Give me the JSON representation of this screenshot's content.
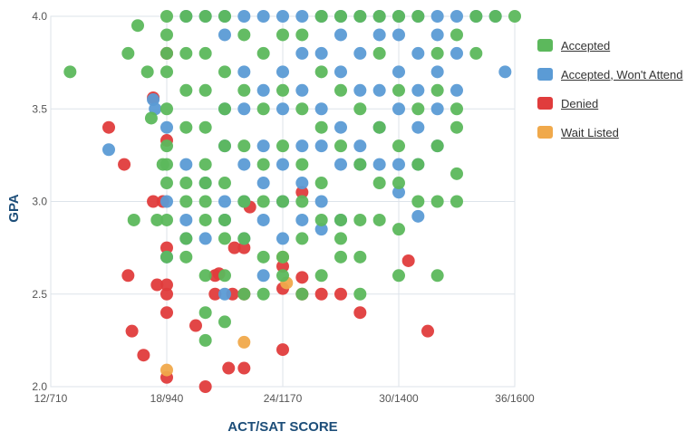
{
  "chart_data": {
    "type": "scatter",
    "xlabel": "ACT/SAT SCORE",
    "ylabel": "GPA",
    "xlim": [
      12,
      36
    ],
    "ylim": [
      2.0,
      4.0
    ],
    "x_ticks": [
      {
        "value": 12,
        "label": "12/710"
      },
      {
        "value": 18,
        "label": "18/940"
      },
      {
        "value": 24,
        "label": "24/1170"
      },
      {
        "value": 30,
        "label": "30/1400"
      },
      {
        "value": 36,
        "label": "36/1600"
      }
    ],
    "y_ticks": [
      {
        "value": 2.0,
        "label": "2.0"
      },
      {
        "value": 2.5,
        "label": "2.5"
      },
      {
        "value": 3.0,
        "label": "3.0"
      },
      {
        "value": 3.5,
        "label": "3.5"
      },
      {
        "value": 4.0,
        "label": "4.0"
      }
    ],
    "grid": true,
    "legend_position": "right",
    "series": [
      {
        "name": "Accepted",
        "color": "#5cb85c",
        "points": [
          [
            13.0,
            3.7
          ],
          [
            16.0,
            3.8
          ],
          [
            16.3,
            2.9
          ],
          [
            16.5,
            3.95
          ],
          [
            17.0,
            3.7
          ],
          [
            17.2,
            3.45
          ],
          [
            17.5,
            2.9
          ],
          [
            17.8,
            3.2
          ],
          [
            18.0,
            3.5
          ],
          [
            18.0,
            3.3
          ],
          [
            18.0,
            3.2
          ],
          [
            18.0,
            3.1
          ],
          [
            18.0,
            2.9
          ],
          [
            18.0,
            2.7
          ],
          [
            18.0,
            3.7
          ],
          [
            18.0,
            3.8
          ],
          [
            18.0,
            3.9
          ],
          [
            18.0,
            4.0
          ],
          [
            19.0,
            3.6
          ],
          [
            19.0,
            3.4
          ],
          [
            19.0,
            3.1
          ],
          [
            19.0,
            3.0
          ],
          [
            19.0,
            2.8
          ],
          [
            19.0,
            2.7
          ],
          [
            19.0,
            3.8
          ],
          [
            19.0,
            4.0
          ],
          [
            20.0,
            3.6
          ],
          [
            20.0,
            3.4
          ],
          [
            20.0,
            3.2
          ],
          [
            20.0,
            3.1
          ],
          [
            20.0,
            3.0
          ],
          [
            20.0,
            2.9
          ],
          [
            20.0,
            2.6
          ],
          [
            20.0,
            2.4
          ],
          [
            20.0,
            2.25
          ],
          [
            20.0,
            3.8
          ],
          [
            20.0,
            4.0
          ],
          [
            21.0,
            3.7
          ],
          [
            21.0,
            3.5
          ],
          [
            21.0,
            3.3
          ],
          [
            21.0,
            3.1
          ],
          [
            21.0,
            2.9
          ],
          [
            21.0,
            2.8
          ],
          [
            21.0,
            2.6
          ],
          [
            21.0,
            2.35
          ],
          [
            21.0,
            4.0
          ],
          [
            22.0,
            3.6
          ],
          [
            22.0,
            3.3
          ],
          [
            22.0,
            3.0
          ],
          [
            22.0,
            2.8
          ],
          [
            22.0,
            2.5
          ],
          [
            22.0,
            3.9
          ],
          [
            23.0,
            3.5
          ],
          [
            23.0,
            3.2
          ],
          [
            23.0,
            3.0
          ],
          [
            23.0,
            2.7
          ],
          [
            23.0,
            2.5
          ],
          [
            23.0,
            3.8
          ],
          [
            24.0,
            3.6
          ],
          [
            24.0,
            3.3
          ],
          [
            24.0,
            3.0
          ],
          [
            24.0,
            2.7
          ],
          [
            24.0,
            2.6
          ],
          [
            24.0,
            3.9
          ],
          [
            25.0,
            3.5
          ],
          [
            25.0,
            3.2
          ],
          [
            25.0,
            3.0
          ],
          [
            25.0,
            2.8
          ],
          [
            25.0,
            2.5
          ],
          [
            25.0,
            3.9
          ],
          [
            26.0,
            3.7
          ],
          [
            26.0,
            3.4
          ],
          [
            26.0,
            3.1
          ],
          [
            26.0,
            2.9
          ],
          [
            26.0,
            2.6
          ],
          [
            26.0,
            4.0
          ],
          [
            27.0,
            3.6
          ],
          [
            27.0,
            3.3
          ],
          [
            27.0,
            2.9
          ],
          [
            27.0,
            2.8
          ],
          [
            27.0,
            2.7
          ],
          [
            27.0,
            4.0
          ],
          [
            28.0,
            3.5
          ],
          [
            28.0,
            3.2
          ],
          [
            28.0,
            2.9
          ],
          [
            28.0,
            2.7
          ],
          [
            28.0,
            2.5
          ],
          [
            28.0,
            4.0
          ],
          [
            29.0,
            3.4
          ],
          [
            29.0,
            3.1
          ],
          [
            29.0,
            2.9
          ],
          [
            29.0,
            3.8
          ],
          [
            29.0,
            4.0
          ],
          [
            30.0,
            3.6
          ],
          [
            30.0,
            3.3
          ],
          [
            30.0,
            3.1
          ],
          [
            30.0,
            2.85
          ],
          [
            30.0,
            2.6
          ],
          [
            30.0,
            4.0
          ],
          [
            31.0,
            3.5
          ],
          [
            31.0,
            3.2
          ],
          [
            31.0,
            3.0
          ],
          [
            31.0,
            4.0
          ],
          [
            32.0,
            3.6
          ],
          [
            32.0,
            3.3
          ],
          [
            32.0,
            3.0
          ],
          [
            32.0,
            2.6
          ],
          [
            32.0,
            3.8
          ],
          [
            33.0,
            3.5
          ],
          [
            33.0,
            3.15
          ],
          [
            33.0,
            3.0
          ],
          [
            33.0,
            3.4
          ],
          [
            33.0,
            3.9
          ],
          [
            34.0,
            3.8
          ],
          [
            34.0,
            4.0
          ],
          [
            35.0,
            4.0
          ],
          [
            36.0,
            4.0
          ]
        ]
      },
      {
        "name": "Accepted, Won't Attend",
        "color": "#5b9bd5",
        "points": [
          [
            15.0,
            3.28
          ],
          [
            17.3,
            3.55
          ],
          [
            17.4,
            3.5
          ],
          [
            18.0,
            3.0
          ],
          [
            18.0,
            2.7
          ],
          [
            18.0,
            3.4
          ],
          [
            19.0,
            4.0
          ],
          [
            19.0,
            3.2
          ],
          [
            19.0,
            2.9
          ],
          [
            19.0,
            2.8
          ],
          [
            20.0,
            4.0
          ],
          [
            20.0,
            3.1
          ],
          [
            20.0,
            2.8
          ],
          [
            21.0,
            4.0
          ],
          [
            21.0,
            3.9
          ],
          [
            21.0,
            3.5
          ],
          [
            21.0,
            3.3
          ],
          [
            21.0,
            3.0
          ],
          [
            21.0,
            2.9
          ],
          [
            21.0,
            2.5
          ],
          [
            22.0,
            4.0
          ],
          [
            22.0,
            3.7
          ],
          [
            22.0,
            3.5
          ],
          [
            22.0,
            3.2
          ],
          [
            22.0,
            3.0
          ],
          [
            22.0,
            2.8
          ],
          [
            23.0,
            4.0
          ],
          [
            23.0,
            3.6
          ],
          [
            23.0,
            3.3
          ],
          [
            23.0,
            3.1
          ],
          [
            23.0,
            2.9
          ],
          [
            23.0,
            2.6
          ],
          [
            24.0,
            4.0
          ],
          [
            24.0,
            3.7
          ],
          [
            24.0,
            3.5
          ],
          [
            24.0,
            3.2
          ],
          [
            24.0,
            3.0
          ],
          [
            24.0,
            2.8
          ],
          [
            25.0,
            4.0
          ],
          [
            25.0,
            3.8
          ],
          [
            25.0,
            3.6
          ],
          [
            25.0,
            3.3
          ],
          [
            25.0,
            3.1
          ],
          [
            25.0,
            2.9
          ],
          [
            26.0,
            4.0
          ],
          [
            26.0,
            3.8
          ],
          [
            26.0,
            3.5
          ],
          [
            26.0,
            3.3
          ],
          [
            26.0,
            3.0
          ],
          [
            26.0,
            2.85
          ],
          [
            27.0,
            4.0
          ],
          [
            27.0,
            3.9
          ],
          [
            27.0,
            3.7
          ],
          [
            27.0,
            3.4
          ],
          [
            27.0,
            3.2
          ],
          [
            27.0,
            2.9
          ],
          [
            28.0,
            4.0
          ],
          [
            28.0,
            3.8
          ],
          [
            28.0,
            3.6
          ],
          [
            28.0,
            3.3
          ],
          [
            28.0,
            3.2
          ],
          [
            29.0,
            4.0
          ],
          [
            29.0,
            3.9
          ],
          [
            29.0,
            3.6
          ],
          [
            29.0,
            3.4
          ],
          [
            29.0,
            3.2
          ],
          [
            30.0,
            4.0
          ],
          [
            30.0,
            3.9
          ],
          [
            30.0,
            3.7
          ],
          [
            30.0,
            3.5
          ],
          [
            30.0,
            3.2
          ],
          [
            30.0,
            3.05
          ],
          [
            31.0,
            4.0
          ],
          [
            31.0,
            3.8
          ],
          [
            31.0,
            3.6
          ],
          [
            31.0,
            3.4
          ],
          [
            31.0,
            3.2
          ],
          [
            31.0,
            2.92
          ],
          [
            32.0,
            4.0
          ],
          [
            32.0,
            3.9
          ],
          [
            32.0,
            3.7
          ],
          [
            32.0,
            3.5
          ],
          [
            32.0,
            3.3
          ],
          [
            33.0,
            4.0
          ],
          [
            33.0,
            3.8
          ],
          [
            33.0,
            3.6
          ],
          [
            34.0,
            4.0
          ],
          [
            35.0,
            4.0
          ],
          [
            35.5,
            3.7
          ]
        ]
      },
      {
        "name": "Denied",
        "color": "#e03c3c",
        "points": [
          [
            15.0,
            3.4
          ],
          [
            15.8,
            3.2
          ],
          [
            16.0,
            2.6
          ],
          [
            16.2,
            2.3
          ],
          [
            16.8,
            2.17
          ],
          [
            17.3,
            3.56
          ],
          [
            17.3,
            3.0
          ],
          [
            17.5,
            2.55
          ],
          [
            17.8,
            3.0
          ],
          [
            18.0,
            2.75
          ],
          [
            18.0,
            2.55
          ],
          [
            18.0,
            2.5
          ],
          [
            18.0,
            2.4
          ],
          [
            18.0,
            2.05
          ],
          [
            18.0,
            3.33
          ],
          [
            18.0,
            3.8
          ],
          [
            19.5,
            2.33
          ],
          [
            20.0,
            2.0
          ],
          [
            20.5,
            2.5
          ],
          [
            20.5,
            2.6
          ],
          [
            20.7,
            2.61
          ],
          [
            21.2,
            2.1
          ],
          [
            21.4,
            2.5
          ],
          [
            21.5,
            2.75
          ],
          [
            22.0,
            2.5
          ],
          [
            22.0,
            2.75
          ],
          [
            22.0,
            2.1
          ],
          [
            22.3,
            2.97
          ],
          [
            24.0,
            2.53
          ],
          [
            24.0,
            2.2
          ],
          [
            24.0,
            2.65
          ],
          [
            25.0,
            2.59
          ],
          [
            25.0,
            2.5
          ],
          [
            25.0,
            3.05
          ],
          [
            26.0,
            2.5
          ],
          [
            27.0,
            2.5
          ],
          [
            28.0,
            2.4
          ],
          [
            30.5,
            2.68
          ],
          [
            31.5,
            2.3
          ]
        ]
      },
      {
        "name": "Wait Listed",
        "color": "#f0a94b",
        "points": [
          [
            18.0,
            2.09
          ],
          [
            22.0,
            2.24
          ],
          [
            24.0,
            2.7
          ],
          [
            24.2,
            2.56
          ]
        ]
      }
    ]
  }
}
